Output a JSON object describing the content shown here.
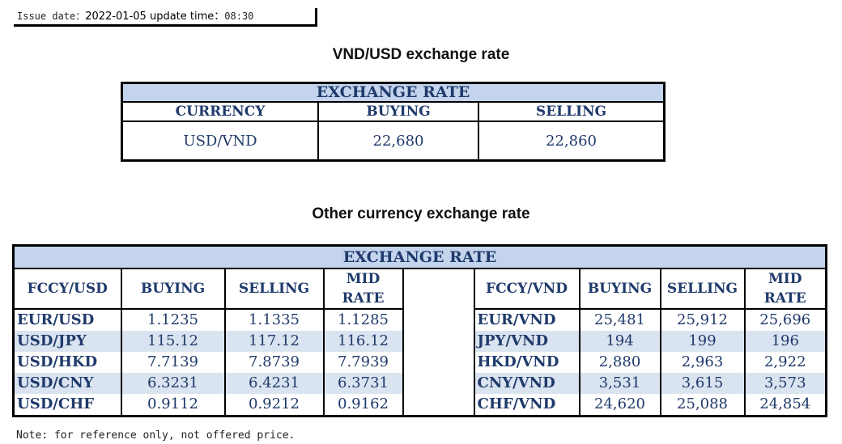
{
  "issue": {
    "date_label": "Issue date：",
    "date": "2022-01-05",
    "time_label": "update time：",
    "time": "08:30"
  },
  "main": {
    "title": "VND/USD exchange rate",
    "header": "EXCHANGE RATE",
    "columns": [
      "CURRENCY",
      "BUYING",
      "SELLING"
    ],
    "row": {
      "currency": "USD/VND",
      "buying": "22,680",
      "selling": "22,860"
    }
  },
  "other": {
    "title": "Other currency exchange rate",
    "header": "EXCHANGE  RATE",
    "left_columns": [
      "FCCY/USD",
      "BUYING",
      "SELLING",
      "MID RATE"
    ],
    "right_columns": [
      "FCCY/VND",
      "BUYING",
      "SELLING",
      "MID RATE"
    ],
    "rows": [
      {
        "pair": "EUR/USD",
        "buy": "1.1235",
        "sell": "1.1335",
        "mid": "1.1285",
        "vpair": "EUR/VND",
        "vbuy": "25,481",
        "vsell": "25,912",
        "vmid": "25,696"
      },
      {
        "pair": "USD/JPY",
        "buy": "115.12",
        "sell": "117.12",
        "mid": "116.12",
        "vpair": "JPY/VND",
        "vbuy": "194",
        "vsell": "199",
        "vmid": "196"
      },
      {
        "pair": "USD/HKD",
        "buy": "7.7139",
        "sell": "7.8739",
        "mid": "7.7939",
        "vpair": "HKD/VND",
        "vbuy": "2,880",
        "vsell": "2,963",
        "vmid": "2,922"
      },
      {
        "pair": "USD/CNY",
        "buy": "6.3231",
        "sell": "6.4231",
        "mid": "6.3731",
        "vpair": "CNY/VND",
        "vbuy": "3,531",
        "vsell": "3,615",
        "vmid": "3,573"
      },
      {
        "pair": "USD/CHF",
        "buy": "0.9112",
        "sell": "0.9212",
        "mid": "0.9162",
        "vpair": "CHF/VND",
        "vbuy": "24,620",
        "vsell": "25,088",
        "vmid": "24,854"
      }
    ]
  },
  "note": "Note: for reference only, not offered price.",
  "colors": {
    "header_bg": "#c3d4ec",
    "alt_row_bg": "#dae3f0",
    "text": "#1f3a6b"
  }
}
